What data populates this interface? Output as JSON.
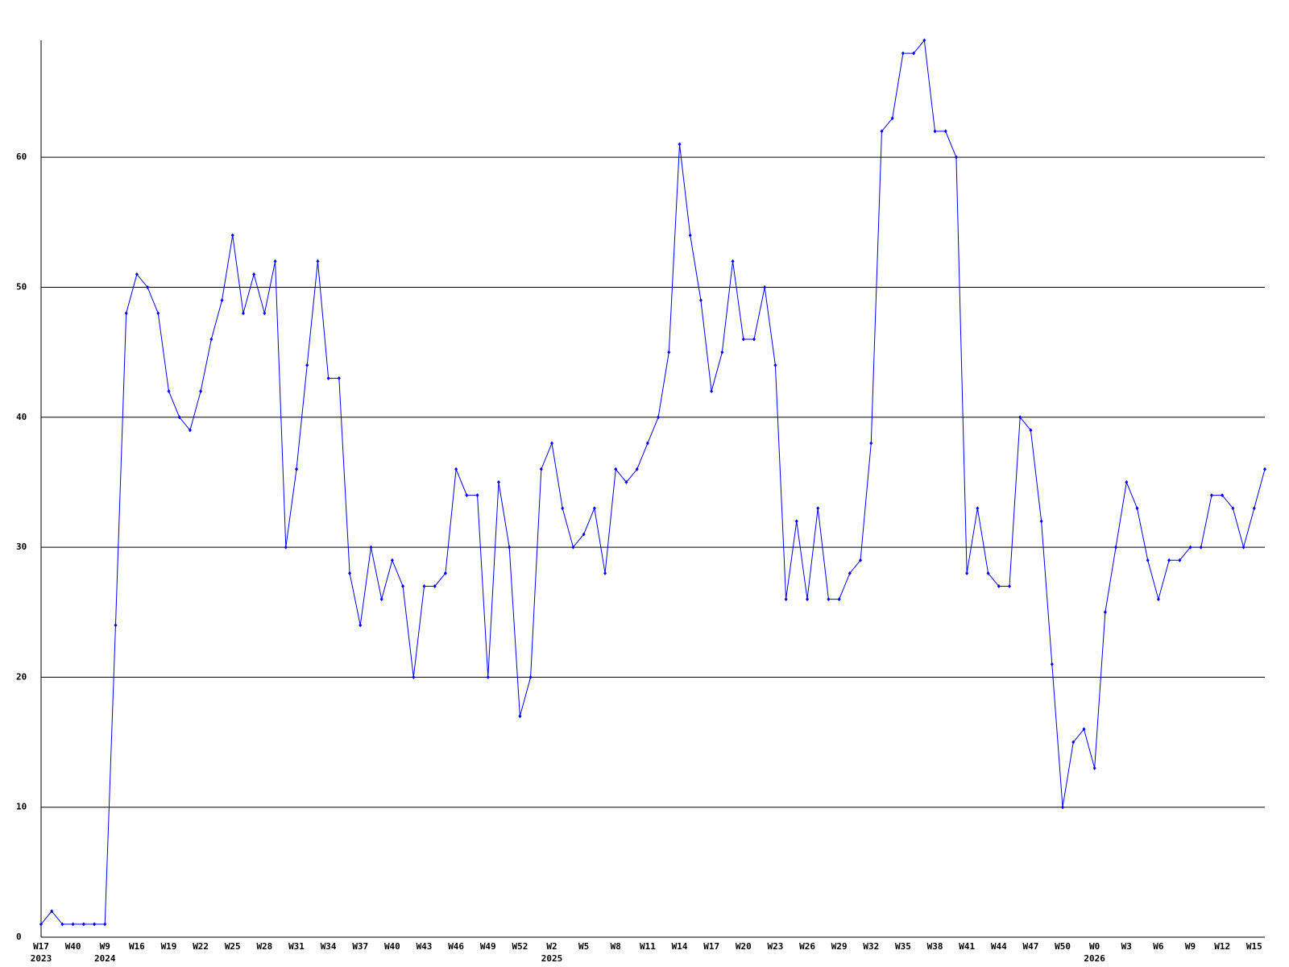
{
  "chart_data": {
    "type": "line",
    "categories": [
      "W17",
      null,
      null,
      "W40",
      null,
      null,
      "W9",
      null,
      null,
      "W16",
      null,
      null,
      "W19",
      null,
      null,
      "W22",
      null,
      null,
      "W25",
      null,
      null,
      "W28",
      null,
      null,
      "W31",
      null,
      null,
      "W34",
      null,
      null,
      "W37",
      null,
      null,
      "W40",
      null,
      null,
      "W43",
      null,
      null,
      "W46",
      null,
      null,
      "W49",
      null,
      null,
      "W52",
      null,
      null,
      "W2",
      null,
      null,
      "W5",
      null,
      null,
      "W8",
      null,
      null,
      "W11",
      null,
      null,
      "W14",
      null,
      null,
      "W17",
      null,
      null,
      "W20",
      null,
      null,
      "W23",
      null,
      null,
      "W26",
      null,
      null,
      "W29",
      null,
      null,
      "W32",
      null,
      null,
      "W35",
      null,
      null,
      "W38",
      null,
      null,
      "W41",
      null,
      null,
      "W44",
      null,
      null,
      "W47",
      null,
      null,
      "W50",
      null,
      null,
      "W0",
      null,
      null,
      "W3",
      null,
      null,
      "W6",
      null,
      null,
      "W9",
      null,
      null,
      "W12",
      null,
      null,
      "W15",
      null
    ],
    "year_labels": [
      "2023",
      null,
      null,
      null,
      null,
      null,
      "2024",
      null,
      null,
      null,
      null,
      null,
      null,
      null,
      null,
      null,
      null,
      null,
      null,
      null,
      null,
      null,
      null,
      null,
      null,
      null,
      null,
      null,
      null,
      null,
      null,
      null,
      null,
      null,
      null,
      null,
      null,
      null,
      null,
      null,
      null,
      null,
      null,
      null,
      null,
      null,
      null,
      null,
      "2025",
      null,
      null,
      null,
      null,
      null,
      null,
      null,
      null,
      null,
      null,
      null,
      null,
      null,
      null,
      null,
      null,
      null,
      null,
      null,
      null,
      null,
      null,
      null,
      null,
      null,
      null,
      null,
      null,
      null,
      null,
      null,
      null,
      null,
      null,
      null,
      null,
      null,
      null,
      null,
      null,
      null,
      null,
      null,
      null,
      null,
      null,
      null,
      null,
      null,
      null,
      "2026",
      null,
      null,
      null,
      null,
      null,
      null,
      null,
      null,
      null,
      null,
      null,
      null,
      null,
      null,
      null,
      null
    ],
    "series": [
      {
        "color": "#0000ff",
        "values": [
          1,
          2,
          1,
          1,
          1,
          1,
          1,
          24,
          48,
          51,
          50,
          48,
          42,
          40,
          39,
          42,
          46,
          49,
          54,
          48,
          51,
          48,
          52,
          30,
          36,
          44,
          52,
          43,
          43,
          28,
          24,
          30,
          26,
          29,
          27,
          20,
          27,
          27,
          28,
          36,
          34,
          34,
          20,
          35,
          30,
          17,
          20,
          36,
          38,
          33,
          30,
          31,
          33,
          28,
          36,
          35,
          36,
          38,
          40,
          45,
          61,
          54,
          49,
          42,
          45,
          52,
          46,
          46,
          50,
          44,
          26,
          32,
          26,
          33,
          26,
          26,
          28,
          29,
          38,
          62,
          63,
          68,
          68,
          69,
          62,
          62,
          60,
          28,
          33,
          28,
          27,
          27,
          40,
          39,
          32,
          21,
          10,
          15,
          16,
          13,
          25,
          30,
          35,
          33,
          29,
          26,
          29,
          29,
          30,
          30,
          34,
          34,
          33,
          30,
          33,
          36
        ]
      }
    ],
    "ylim": [
      0,
      69
    ],
    "yticks": [
      0,
      10,
      20,
      30,
      40,
      50,
      60
    ],
    "grid": true
  }
}
